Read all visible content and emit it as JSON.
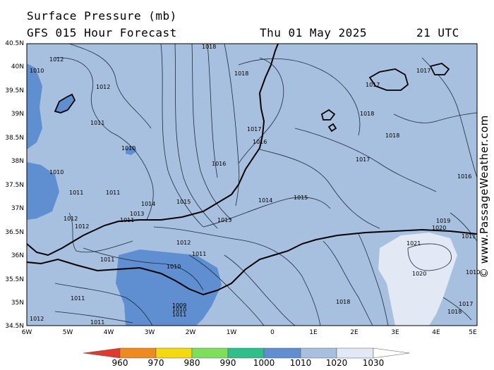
{
  "header": {
    "title": "Surface Pressure (mb)",
    "forecast": "GFS 015 Hour Forecast",
    "date": "Thu 01 May 2025",
    "time": "21 UTC"
  },
  "credit": "© www.PassageWeather.com",
  "axes": {
    "lat_labels": [
      "40.5N",
      "40N",
      "39.5N",
      "39N",
      "38.5N",
      "38N",
      "37.5N",
      "37N",
      "36.5N",
      "36N",
      "35.5N",
      "35N",
      "34.5N"
    ],
    "lon_labels": [
      "6W",
      "5W",
      "4W",
      "3W",
      "2W",
      "1W",
      "0",
      "1E",
      "2E",
      "3E",
      "4E",
      "5E"
    ]
  },
  "colorbar": {
    "labels": [
      "960",
      "970",
      "980",
      "990",
      "1000",
      "1010",
      "1020",
      "1030"
    ],
    "colors": [
      "#e03a2e",
      "#f08a1e",
      "#f5d90f",
      "#7ee05a",
      "#2fbf8c",
      "#5f8fd0",
      "#a8c0e0",
      "#e2e8f4"
    ]
  },
  "map": {
    "colors": {
      "water_low": "#5f8fd0",
      "mid": "#a8c0e0",
      "high": "#e2e8f4"
    },
    "isobar_labels": [
      "1018",
      "1012",
      "1010",
      "1012",
      "1018",
      "1017",
      "1017",
      "1011",
      "1018",
      "1018",
      "1010",
      "1017",
      "1016",
      "1016",
      "1017",
      "1010",
      "1016",
      "1011",
      "1011",
      "1015",
      "1014",
      "1015",
      "1014",
      "1012",
      "1013",
      "1011",
      "1013",
      "1019",
      "1020",
      "1012",
      "1021",
      "1011",
      "1012",
      "1011",
      "1010",
      "1011",
      "1020",
      "1011",
      "1009",
      "1010",
      "1011",
      "1018",
      "1012",
      "1011",
      "1018",
      "1017",
      "1010"
    ]
  }
}
